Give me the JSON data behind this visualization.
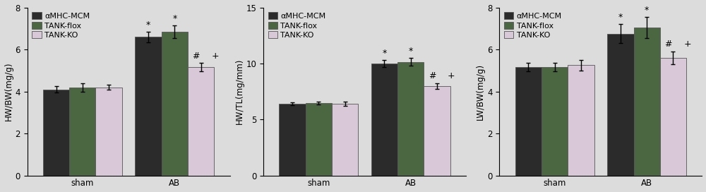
{
  "panels": [
    {
      "ylabel": "HW/BW(mg/g)",
      "ylim": [
        0,
        8
      ],
      "yticks": [
        0,
        2,
        4,
        6,
        8
      ],
      "groups": [
        "sham",
        "AB"
      ],
      "series": [
        {
          "name": "αMHC-MCM",
          "color": "#2b2b2b",
          "hatch": "",
          "values": [
            4.1,
            6.6
          ],
          "errors": [
            0.15,
            0.25
          ]
        },
        {
          "name": "TANK-flox",
          "color": "#4a6741",
          "hatch": "",
          "values": [
            4.2,
            6.85
          ],
          "errors": [
            0.2,
            0.3
          ]
        },
        {
          "name": "TANK-KO",
          "color": "#d8c8d8",
          "hatch": "",
          "values": [
            4.2,
            5.15
          ],
          "errors": [
            0.12,
            0.2
          ]
        }
      ],
      "annotations": {
        "AB": [
          "*",
          "*",
          "# +"
        ]
      }
    },
    {
      "ylabel": "HW/TL(mg/mm)",
      "ylim": [
        0,
        15
      ],
      "yticks": [
        0,
        5,
        10,
        15
      ],
      "groups": [
        "sham",
        "AB"
      ],
      "series": [
        {
          "name": "αMHC-MCM",
          "color": "#2b2b2b",
          "hatch": "",
          "values": [
            6.4,
            10.0
          ],
          "errors": [
            0.15,
            0.3
          ]
        },
        {
          "name": "TANK-flox",
          "color": "#4a6741",
          "hatch": "",
          "values": [
            6.45,
            10.15
          ],
          "errors": [
            0.12,
            0.35
          ]
        },
        {
          "name": "TANK-KO",
          "color": "#d8c8d8",
          "hatch": "",
          "values": [
            6.4,
            8.0
          ],
          "errors": [
            0.2,
            0.25
          ]
        }
      ],
      "annotations": {
        "AB": [
          "*",
          "*",
          "# +"
        ]
      }
    },
    {
      "ylabel": "LW/BW(mg/g)",
      "ylim": [
        0,
        8
      ],
      "yticks": [
        0,
        2,
        4,
        6,
        8
      ],
      "groups": [
        "sham",
        "AB"
      ],
      "series": [
        {
          "name": "αMHC-MCM",
          "color": "#2b2b2b",
          "hatch": "",
          "values": [
            5.15,
            6.75
          ],
          "errors": [
            0.2,
            0.45
          ]
        },
        {
          "name": "TANK-flox",
          "color": "#4a6741",
          "hatch": "",
          "values": [
            5.15,
            7.05
          ],
          "errors": [
            0.2,
            0.5
          ]
        },
        {
          "name": "TANK-KO",
          "color": "#d8c8d8",
          "hatch": "",
          "values": [
            5.25,
            5.6
          ],
          "errors": [
            0.25,
            0.3
          ]
        }
      ],
      "annotations": {
        "AB": [
          "*",
          "*",
          "# +"
        ]
      }
    }
  ],
  "legend_labels": [
    "αMHC-MCM",
    "TANK-flox",
    "TANK-KO"
  ],
  "legend_colors": [
    "#2b2b2b",
    "#4a6741",
    "#d8c8d8"
  ],
  "background_color": "#dcdcdc",
  "bar_width": 0.2,
  "fontsize": 8.5,
  "annotation_fontsize": 9,
  "legend_fontsize": 8
}
